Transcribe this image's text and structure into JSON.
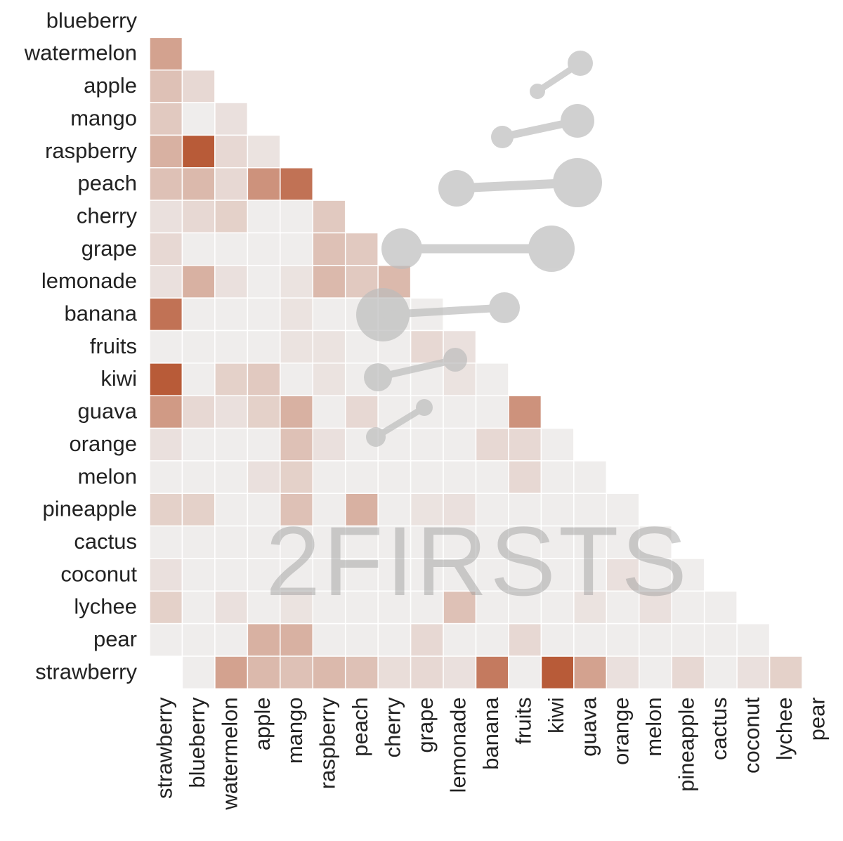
{
  "chart_data": {
    "type": "heatmap",
    "watermark": "2FIRSTS",
    "x": [
      "strawberry",
      "blueberry",
      "watermelon",
      "apple",
      "mango",
      "raspberry",
      "peach",
      "cherry",
      "grape",
      "lemonade",
      "banana",
      "fruits",
      "kiwi",
      "guava",
      "orange",
      "melon",
      "pineapple",
      "cactus",
      "coconut",
      "lychee",
      "pear"
    ],
    "y": [
      "blueberry",
      "watermelon",
      "apple",
      "mango",
      "raspberry",
      "peach",
      "cherry",
      "grape",
      "lemonade",
      "banana",
      "fruits",
      "kiwi",
      "guava",
      "orange",
      "melon",
      "pineapple",
      "cactus",
      "coconut",
      "lychee",
      "pear",
      "strawberry"
    ],
    "zlim": [
      0,
      1
    ],
    "colors": [
      "#f0f0f0",
      "#b5532e"
    ],
    "values": [
      [
        null,
        null,
        null,
        null,
        null,
        null,
        null,
        null,
        null,
        null,
        null,
        null,
        null,
        null,
        null,
        null,
        null,
        null,
        null,
        null,
        null
      ],
      [
        0.5,
        null,
        null,
        null,
        null,
        null,
        null,
        null,
        null,
        null,
        null,
        null,
        null,
        null,
        null,
        null,
        null,
        null,
        null,
        null,
        null
      ],
      [
        0.3,
        0.15,
        null,
        null,
        null,
        null,
        null,
        null,
        null,
        null,
        null,
        null,
        null,
        null,
        null,
        null,
        null,
        null,
        null,
        null,
        null
      ],
      [
        0.25,
        0.02,
        0.1,
        null,
        null,
        null,
        null,
        null,
        null,
        null,
        null,
        null,
        null,
        null,
        null,
        null,
        null,
        null,
        null,
        null,
        null
      ],
      [
        0.4,
        0.95,
        0.15,
        0.08,
        null,
        null,
        null,
        null,
        null,
        null,
        null,
        null,
        null,
        null,
        null,
        null,
        null,
        null,
        null,
        null,
        null
      ],
      [
        0.3,
        0.35,
        0.15,
        0.6,
        0.8,
        null,
        null,
        null,
        null,
        null,
        null,
        null,
        null,
        null,
        null,
        null,
        null,
        null,
        null,
        null,
        null
      ],
      [
        0.1,
        0.15,
        0.2,
        0.02,
        0.02,
        0.25,
        null,
        null,
        null,
        null,
        null,
        null,
        null,
        null,
        null,
        null,
        null,
        null,
        null,
        null,
        null
      ],
      [
        0.15,
        0.02,
        0.02,
        0.02,
        0.02,
        0.3,
        0.25,
        null,
        null,
        null,
        null,
        null,
        null,
        null,
        null,
        null,
        null,
        null,
        null,
        null,
        null
      ],
      [
        0.1,
        0.4,
        0.1,
        0.02,
        0.08,
        0.35,
        0.25,
        0.35,
        null,
        null,
        null,
        null,
        null,
        null,
        null,
        null,
        null,
        null,
        null,
        null,
        null
      ],
      [
        0.8,
        0.02,
        0.02,
        0.02,
        0.08,
        0.02,
        0.02,
        0.02,
        0.02,
        null,
        null,
        null,
        null,
        null,
        null,
        null,
        null,
        null,
        null,
        null,
        null
      ],
      [
        0.02,
        0.02,
        0.02,
        0.02,
        0.08,
        0.08,
        0.02,
        0.02,
        0.15,
        0.1,
        null,
        null,
        null,
        null,
        null,
        null,
        null,
        null,
        null,
        null,
        null
      ],
      [
        0.95,
        0.02,
        0.2,
        0.25,
        0.02,
        0.08,
        0.02,
        0.02,
        0.02,
        0.08,
        0.02,
        null,
        null,
        null,
        null,
        null,
        null,
        null,
        null,
        null,
        null
      ],
      [
        0.55,
        0.15,
        0.1,
        0.2,
        0.4,
        0.02,
        0.15,
        0.02,
        0.02,
        0.02,
        0.02,
        0.6,
        null,
        null,
        null,
        null,
        null,
        null,
        null,
        null,
        null
      ],
      [
        0.1,
        0.02,
        0.02,
        0.02,
        0.3,
        0.1,
        0.02,
        0.02,
        0.02,
        0.02,
        0.15,
        0.15,
        0.02,
        null,
        null,
        null,
        null,
        null,
        null,
        null,
        null
      ],
      [
        0.02,
        0.02,
        0.02,
        0.1,
        0.2,
        0.02,
        0.02,
        0.02,
        0.02,
        0.02,
        0.02,
        0.15,
        0.02,
        0.02,
        null,
        null,
        null,
        null,
        null,
        null,
        null
      ],
      [
        0.2,
        0.2,
        0.02,
        0.02,
        0.3,
        0.02,
        0.4,
        0.02,
        0.08,
        0.1,
        0.02,
        0.02,
        0.02,
        0.02,
        0.02,
        null,
        null,
        null,
        null,
        null,
        null
      ],
      [
        0.02,
        0.02,
        0.02,
        0.02,
        0.02,
        0.02,
        0.02,
        0.02,
        0.02,
        0.02,
        0.02,
        0.02,
        0.02,
        0.02,
        0.02,
        0.02,
        null,
        null,
        null,
        null,
        null
      ],
      [
        0.1,
        0.02,
        0.02,
        0.02,
        0.02,
        0.02,
        0.02,
        0.02,
        0.02,
        0.02,
        0.02,
        0.02,
        0.02,
        0.02,
        0.1,
        0.02,
        0.02,
        null,
        null,
        null,
        null
      ],
      [
        0.2,
        0.02,
        0.1,
        0.02,
        0.08,
        0.02,
        0.02,
        0.02,
        0.02,
        0.3,
        0.02,
        0.02,
        0.02,
        0.08,
        0.02,
        0.1,
        0.02,
        0.02,
        null,
        null,
        null
      ],
      [
        0.02,
        0.02,
        0.02,
        0.4,
        0.4,
        0.02,
        0.02,
        0.02,
        0.15,
        0.02,
        0.02,
        0.15,
        0.02,
        0.02,
        0.02,
        0.02,
        0.02,
        0.02,
        0.02,
        null,
        null
      ],
      [
        null,
        0.02,
        0.5,
        0.35,
        0.3,
        0.35,
        0.3,
        0.12,
        0.15,
        0.1,
        0.75,
        0.02,
        0.95,
        0.5,
        0.1,
        0.02,
        0.15,
        0.02,
        0.1,
        0.2,
        null
      ]
    ]
  }
}
